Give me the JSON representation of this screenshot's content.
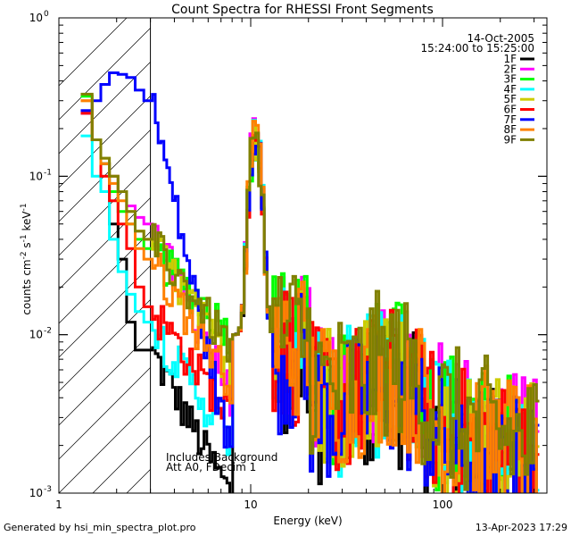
{
  "chart_data": {
    "type": "line",
    "title": "Count Spectra for RHESSI Front Segments",
    "xlabel": "Energy (keV)",
    "ylabel_parts": [
      "counts cm",
      "-2",
      " s",
      "-1",
      " keV",
      "-1"
    ],
    "xscale": "log",
    "yscale": "log",
    "xlim": [
      1,
      350
    ],
    "ylim": [
      0.001,
      1
    ],
    "x_ticks": [
      {
        "v": 1,
        "label": "1"
      },
      {
        "v": 10,
        "label": "10"
      },
      {
        "v": 100,
        "label": "100"
      }
    ],
    "y_ticks": [
      {
        "v": 0.001,
        "base": "10",
        "exp": "-3"
      },
      {
        "v": 0.01,
        "base": "10",
        "exp": "-2"
      },
      {
        "v": 0.1,
        "base": "10",
        "exp": "-1"
      },
      {
        "v": 1,
        "base": "10",
        "exp": "0"
      }
    ],
    "date": "14-Oct-2005",
    "time_range": "15:24:00 to 15:25:00",
    "excluded_region_upper_keV": 3,
    "annotations": [
      "Includes Background",
      "Att A0, FDecim 1"
    ],
    "footer_left": "Generated by hsi_min_spectra_plot.pro",
    "footer_right": "13-Apr-2023 17:29",
    "series": [
      {
        "name": "1F",
        "color": "#000000",
        "low": [
          0.25,
          0.17,
          0.12,
          0.05,
          0.03,
          0.012,
          0.008,
          0.008
        ],
        "dip": 0.0009,
        "high": 0.003
      },
      {
        "name": "2F",
        "color": "#ff00ff",
        "low": [
          0.25,
          0.17,
          0.12,
          0.1,
          0.08,
          0.065,
          0.055,
          0.05
        ],
        "dip": 0.004,
        "high": 0.004
      },
      {
        "name": "3F",
        "color": "#00ff00",
        "low": [
          0.32,
          0.17,
          0.12,
          0.08,
          0.06,
          0.05,
          0.04,
          0.035
        ],
        "dip": 0.01,
        "high": 0.004
      },
      {
        "name": "4F",
        "color": "#00ffff",
        "low": [
          0.18,
          0.1,
          0.08,
          0.04,
          0.025,
          0.018,
          0.014,
          0.012
        ],
        "dip": 0.002,
        "high": 0.0035
      },
      {
        "name": "5F",
        "color": "#cccc00",
        "low": [
          0.3,
          0.17,
          0.13,
          0.1,
          0.08,
          0.06,
          0.045,
          0.04
        ],
        "dip": 0.006,
        "high": 0.004
      },
      {
        "name": "6F",
        "color": "#ff0000",
        "low": [
          0.25,
          0.17,
          0.1,
          0.07,
          0.05,
          0.035,
          0.02,
          0.015
        ],
        "dip": 0.003,
        "high": 0.0035
      },
      {
        "name": "7F",
        "color": "#0000ff",
        "low": [
          0.26,
          0.3,
          0.38,
          0.45,
          0.44,
          0.42,
          0.35,
          0.3
        ],
        "dip": 0.0015,
        "high": 0.003
      },
      {
        "name": "8F",
        "color": "#ff8000",
        "low": [
          0.3,
          0.17,
          0.12,
          0.09,
          0.07,
          0.05,
          0.035,
          0.03
        ],
        "dip": 0.005,
        "high": 0.004
      },
      {
        "name": "9F",
        "color": "#808000",
        "low": [
          0.33,
          0.17,
          0.13,
          0.1,
          0.08,
          0.06,
          0.045,
          0.04
        ],
        "dip": 0.008,
        "high": 0.0045
      }
    ]
  }
}
